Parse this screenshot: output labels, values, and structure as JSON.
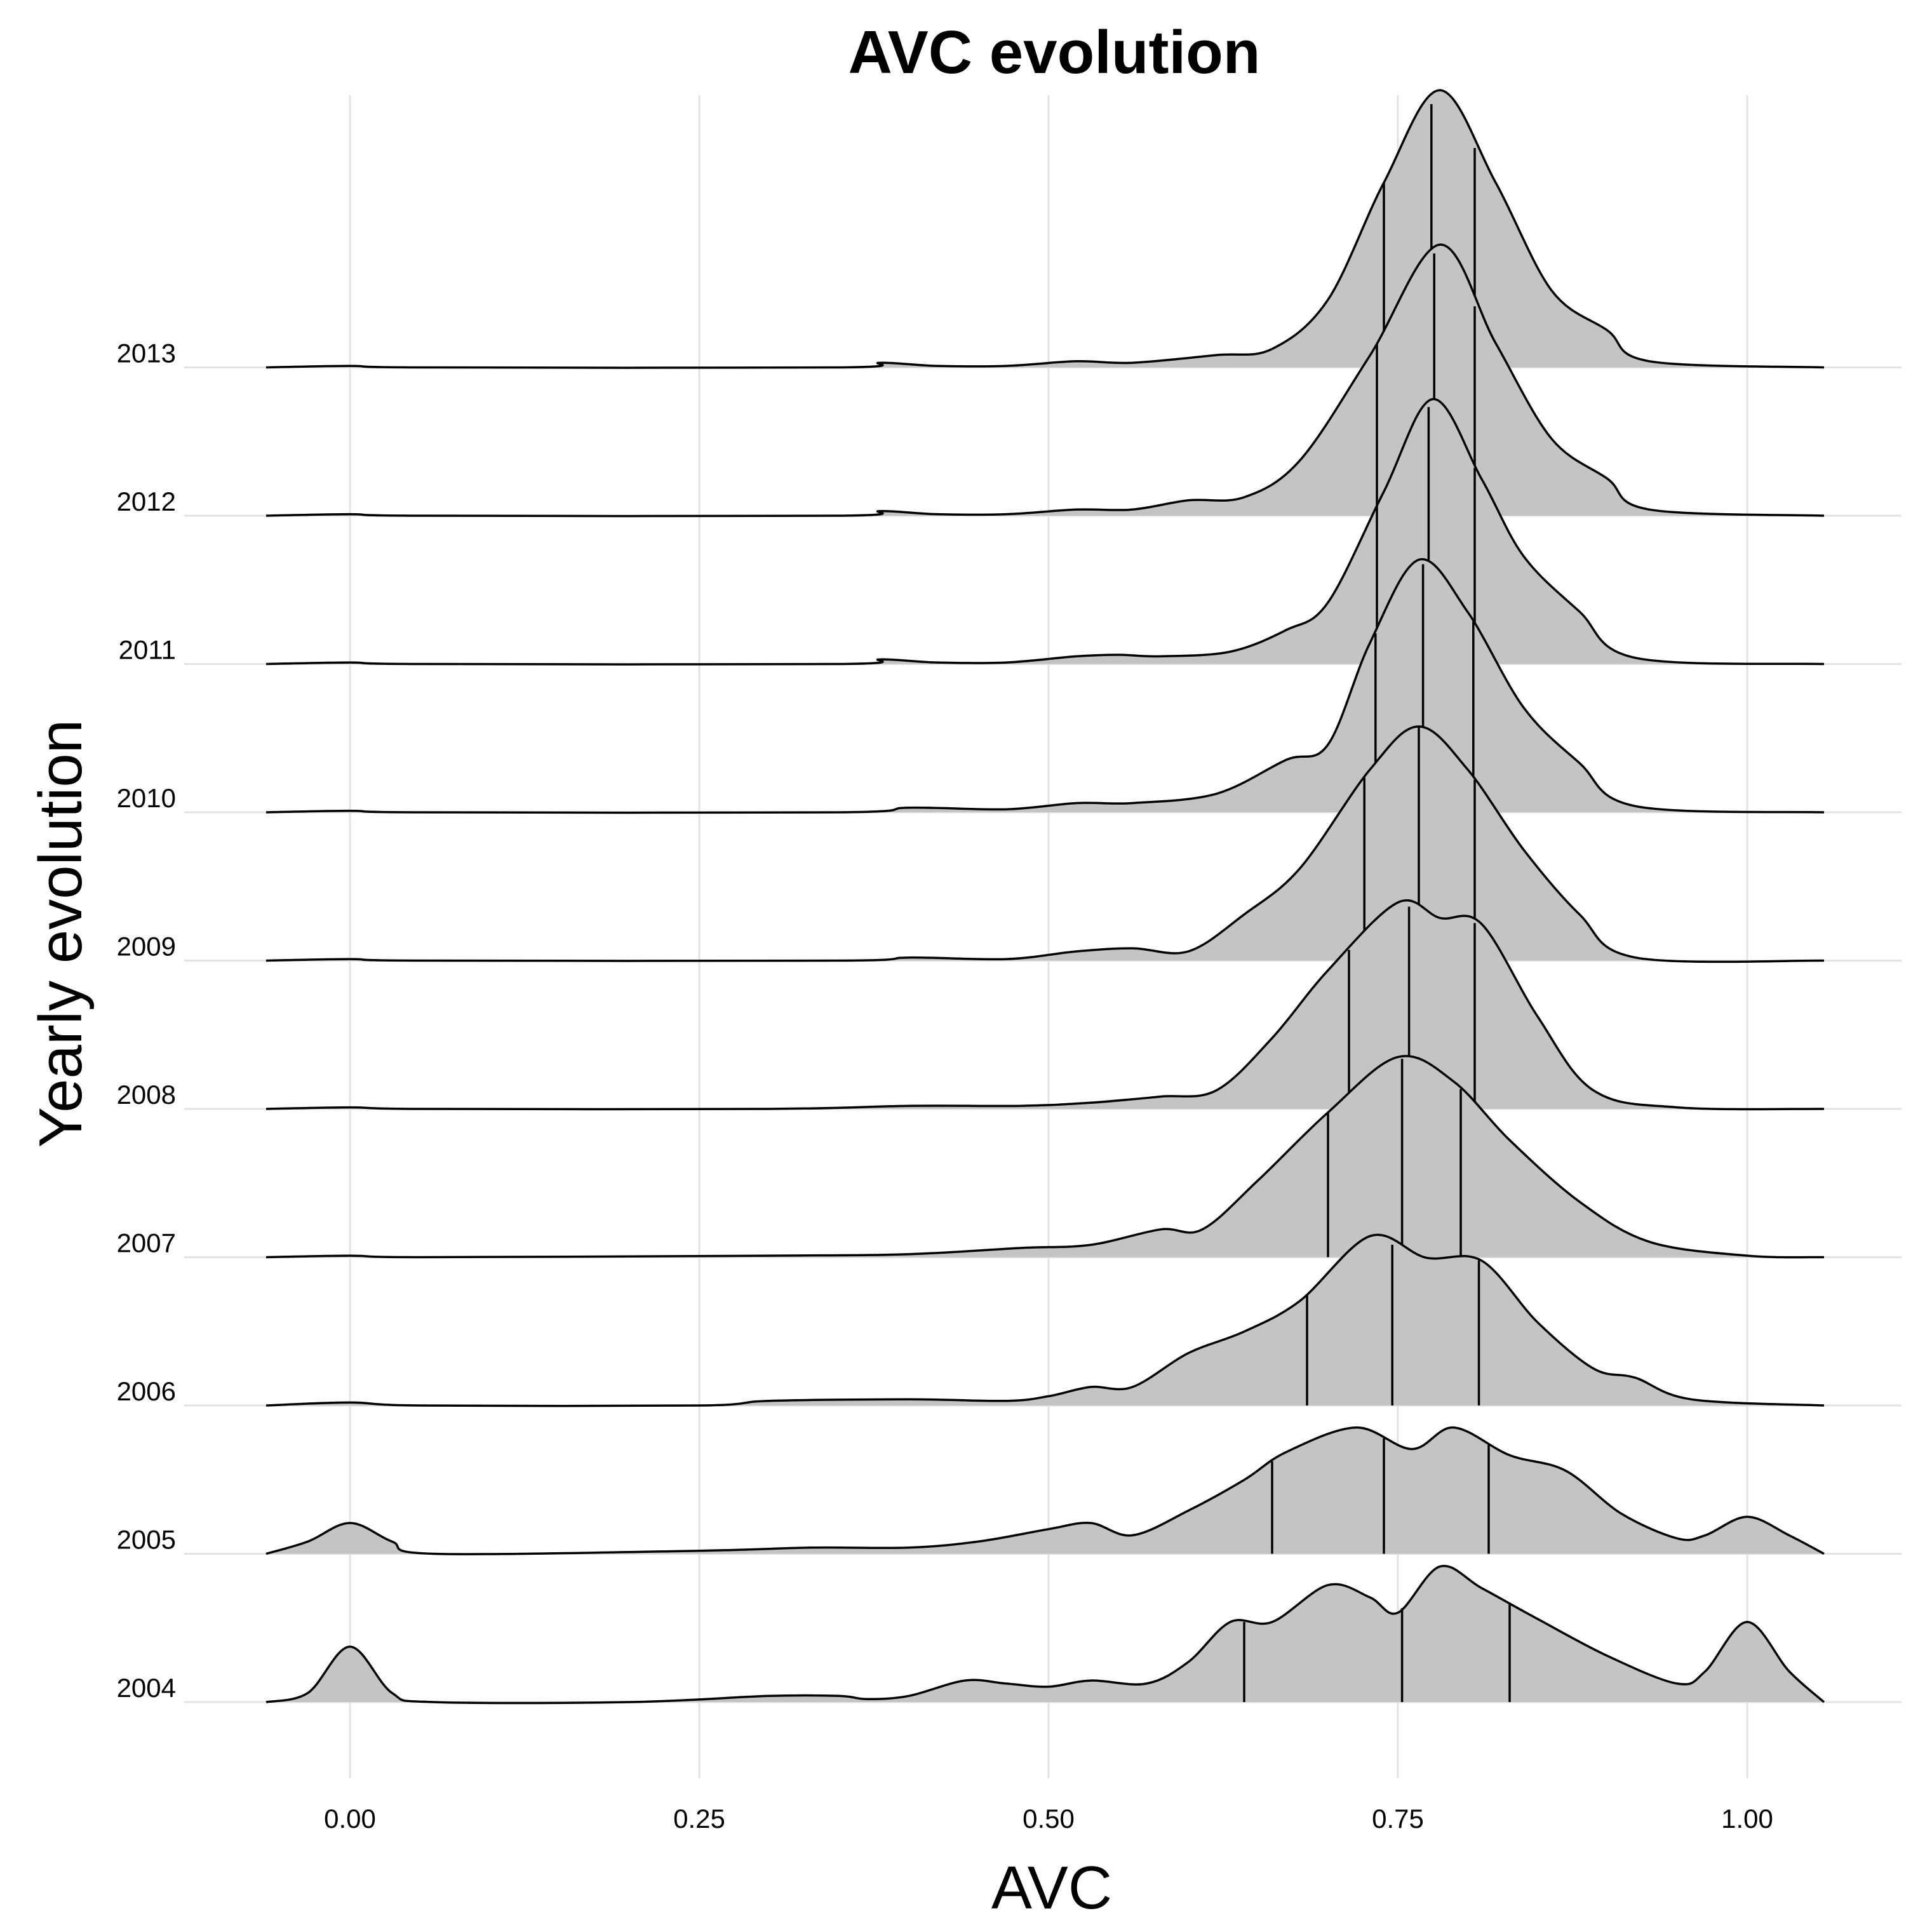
{
  "chart_data": {
    "type": "ridgeline",
    "title": "AVC evolution",
    "xlabel": "AVC",
    "ylabel": "Yearly evolution",
    "xlim": [
      -0.115,
      1.11
    ],
    "xticks": [
      "0.00",
      "0.25",
      "0.50",
      "0.75",
      "1.00"
    ],
    "xtick_values": [
      0,
      0.25,
      0.5,
      0.75,
      1.0
    ],
    "grid": true,
    "fill_color": "#c4c4c4",
    "line_color": "#000000",
    "series": [
      {
        "name": "2004",
        "quantiles": [
          0.64,
          0.753,
          0.83
        ],
        "density": [
          [
            -0.06,
            0
          ],
          [
            -0.03,
            0.03
          ],
          [
            0,
            0.18
          ],
          [
            0.03,
            0.03
          ],
          [
            0.06,
            0
          ],
          [
            0.2,
            0
          ],
          [
            0.3,
            0.02
          ],
          [
            0.35,
            0.02
          ],
          [
            0.37,
            0.01
          ],
          [
            0.4,
            0.02
          ],
          [
            0.44,
            0.07
          ],
          [
            0.47,
            0.06
          ],
          [
            0.5,
            0.05
          ],
          [
            0.53,
            0.07
          ],
          [
            0.57,
            0.06
          ],
          [
            0.6,
            0.13
          ],
          [
            0.63,
            0.26
          ],
          [
            0.66,
            0.26
          ],
          [
            0.7,
            0.38
          ],
          [
            0.73,
            0.34
          ],
          [
            0.75,
            0.29
          ],
          [
            0.78,
            0.44
          ],
          [
            0.81,
            0.37
          ],
          [
            0.85,
            0.27
          ],
          [
            0.9,
            0.15
          ],
          [
            0.95,
            0.06
          ],
          [
            0.97,
            0.1
          ],
          [
            1.0,
            0.26
          ],
          [
            1.03,
            0.1
          ],
          [
            1.055,
            0
          ]
        ]
      },
      {
        "name": "2005",
        "quantiles": [
          0.66,
          0.74,
          0.815
        ],
        "density": [
          [
            -0.06,
            0
          ],
          [
            -0.03,
            0.04
          ],
          [
            0,
            0.1
          ],
          [
            0.03,
            0.04
          ],
          [
            0.06,
            0
          ],
          [
            0.25,
            0.01
          ],
          [
            0.33,
            0.02
          ],
          [
            0.4,
            0.02
          ],
          [
            0.45,
            0.04
          ],
          [
            0.5,
            0.08
          ],
          [
            0.53,
            0.1
          ],
          [
            0.56,
            0.06
          ],
          [
            0.6,
            0.14
          ],
          [
            0.64,
            0.24
          ],
          [
            0.67,
            0.33
          ],
          [
            0.72,
            0.41
          ],
          [
            0.76,
            0.34
          ],
          [
            0.79,
            0.41
          ],
          [
            0.83,
            0.32
          ],
          [
            0.87,
            0.27
          ],
          [
            0.91,
            0.13
          ],
          [
            0.95,
            0.05
          ],
          [
            0.97,
            0.06
          ],
          [
            1.0,
            0.12
          ],
          [
            1.03,
            0.06
          ],
          [
            1.055,
            0
          ]
        ]
      },
      {
        "name": "2006",
        "quantiles": [
          0.685,
          0.746,
          0.808
        ],
        "density": [
          [
            -0.06,
            0
          ],
          [
            0,
            0.01
          ],
          [
            0.05,
            0
          ],
          [
            0.25,
            0
          ],
          [
            0.3,
            0.015
          ],
          [
            0.4,
            0.02
          ],
          [
            0.47,
            0.015
          ],
          [
            0.5,
            0.03
          ],
          [
            0.53,
            0.06
          ],
          [
            0.56,
            0.06
          ],
          [
            0.6,
            0.17
          ],
          [
            0.64,
            0.24
          ],
          [
            0.68,
            0.34
          ],
          [
            0.73,
            0.55
          ],
          [
            0.77,
            0.48
          ],
          [
            0.81,
            0.47
          ],
          [
            0.85,
            0.27
          ],
          [
            0.89,
            0.12
          ],
          [
            0.92,
            0.09
          ],
          [
            0.96,
            0.02
          ],
          [
            1.055,
            0
          ]
        ]
      },
      {
        "name": "2007",
        "quantiles": [
          0.7,
          0.753,
          0.795
        ],
        "density": [
          [
            -0.06,
            0
          ],
          [
            0,
            0.005
          ],
          [
            0.05,
            0
          ],
          [
            0.3,
            0.005
          ],
          [
            0.4,
            0.01
          ],
          [
            0.48,
            0.03
          ],
          [
            0.53,
            0.04
          ],
          [
            0.58,
            0.09
          ],
          [
            0.61,
            0.09
          ],
          [
            0.65,
            0.25
          ],
          [
            0.7,
            0.47
          ],
          [
            0.75,
            0.65
          ],
          [
            0.79,
            0.57
          ],
          [
            0.83,
            0.38
          ],
          [
            0.88,
            0.18
          ],
          [
            0.93,
            0.05
          ],
          [
            1.0,
            0.005
          ],
          [
            1.055,
            0
          ]
        ]
      },
      {
        "name": "2008",
        "quantiles": [
          0.715,
          0.758,
          0.805
        ],
        "density": [
          [
            -0.06,
            0
          ],
          [
            0,
            0.005
          ],
          [
            0.05,
            0
          ],
          [
            0.3,
            0
          ],
          [
            0.4,
            0.01
          ],
          [
            0.48,
            0.01
          ],
          [
            0.53,
            0.02
          ],
          [
            0.58,
            0.04
          ],
          [
            0.62,
            0.06
          ],
          [
            0.66,
            0.23
          ],
          [
            0.7,
            0.45
          ],
          [
            0.75,
            0.67
          ],
          [
            0.78,
            0.62
          ],
          [
            0.81,
            0.6
          ],
          [
            0.85,
            0.3
          ],
          [
            0.89,
            0.06
          ],
          [
            0.95,
            0.005
          ],
          [
            1.055,
            0
          ]
        ]
      },
      {
        "name": "2009",
        "quantiles": [
          0.726,
          0.765,
          0.805
        ],
        "density": [
          [
            -0.06,
            0
          ],
          [
            0,
            0.005
          ],
          [
            0.05,
            0
          ],
          [
            0.35,
            0
          ],
          [
            0.4,
            0.01
          ],
          [
            0.47,
            0.005
          ],
          [
            0.52,
            0.03
          ],
          [
            0.56,
            0.04
          ],
          [
            0.6,
            0.03
          ],
          [
            0.64,
            0.15
          ],
          [
            0.68,
            0.3
          ],
          [
            0.73,
            0.62
          ],
          [
            0.765,
            0.76
          ],
          [
            0.8,
            0.62
          ],
          [
            0.84,
            0.36
          ],
          [
            0.88,
            0.15
          ],
          [
            0.92,
            0.01
          ],
          [
            1.055,
            0
          ]
        ]
      },
      {
        "name": "2010",
        "quantiles": [
          0.734,
          0.768,
          0.804
        ],
        "density": [
          [
            -0.06,
            0
          ],
          [
            0,
            0.005
          ],
          [
            0.05,
            0
          ],
          [
            0.35,
            0
          ],
          [
            0.4,
            0.015
          ],
          [
            0.47,
            0.01
          ],
          [
            0.52,
            0.03
          ],
          [
            0.56,
            0.03
          ],
          [
            0.62,
            0.06
          ],
          [
            0.67,
            0.17
          ],
          [
            0.7,
            0.22
          ],
          [
            0.73,
            0.55
          ],
          [
            0.765,
            0.82
          ],
          [
            0.8,
            0.65
          ],
          [
            0.84,
            0.34
          ],
          [
            0.88,
            0.16
          ],
          [
            0.92,
            0.02
          ],
          [
            1.055,
            0
          ]
        ]
      },
      {
        "name": "2011",
        "quantiles": [
          0.735,
          0.772,
          0.805
        ],
        "density": [
          [
            -0.06,
            0
          ],
          [
            0,
            0.005
          ],
          [
            0.05,
            0
          ],
          [
            0.35,
            0
          ],
          [
            0.38,
            0.015
          ],
          [
            0.42,
            0.005
          ],
          [
            0.47,
            0.005
          ],
          [
            0.52,
            0.025
          ],
          [
            0.55,
            0.03
          ],
          [
            0.58,
            0.025
          ],
          [
            0.63,
            0.04
          ],
          [
            0.67,
            0.11
          ],
          [
            0.7,
            0.2
          ],
          [
            0.74,
            0.56
          ],
          [
            0.775,
            0.86
          ],
          [
            0.81,
            0.6
          ],
          [
            0.84,
            0.35
          ],
          [
            0.88,
            0.17
          ],
          [
            0.92,
            0.02
          ],
          [
            1.055,
            0
          ]
        ]
      },
      {
        "name": "2012",
        "quantiles": [
          0.735,
          0.776,
          0.805
        ],
        "density": [
          [
            -0.06,
            0
          ],
          [
            0,
            0.005
          ],
          [
            0.05,
            0
          ],
          [
            0.35,
            0
          ],
          [
            0.38,
            0.015
          ],
          [
            0.42,
            0.005
          ],
          [
            0.47,
            0.005
          ],
          [
            0.52,
            0.02
          ],
          [
            0.56,
            0.02
          ],
          [
            0.6,
            0.05
          ],
          [
            0.64,
            0.06
          ],
          [
            0.68,
            0.18
          ],
          [
            0.73,
            0.52
          ],
          [
            0.78,
            0.88
          ],
          [
            0.82,
            0.56
          ],
          [
            0.86,
            0.25
          ],
          [
            0.9,
            0.12
          ],
          [
            0.93,
            0.02
          ],
          [
            1.055,
            0
          ]
        ]
      },
      {
        "name": "2013",
        "quantiles": [
          0.74,
          0.774,
          0.805
        ],
        "density": [
          [
            -0.06,
            0
          ],
          [
            0,
            0.005
          ],
          [
            0.05,
            0
          ],
          [
            0.35,
            0
          ],
          [
            0.38,
            0.015
          ],
          [
            0.42,
            0.005
          ],
          [
            0.47,
            0.005
          ],
          [
            0.52,
            0.02
          ],
          [
            0.56,
            0.015
          ],
          [
            0.62,
            0.04
          ],
          [
            0.66,
            0.06
          ],
          [
            0.7,
            0.22
          ],
          [
            0.74,
            0.6
          ],
          [
            0.78,
            0.9
          ],
          [
            0.82,
            0.6
          ],
          [
            0.86,
            0.25
          ],
          [
            0.9,
            0.12
          ],
          [
            0.93,
            0.02
          ],
          [
            1.055,
            0
          ]
        ]
      }
    ]
  }
}
